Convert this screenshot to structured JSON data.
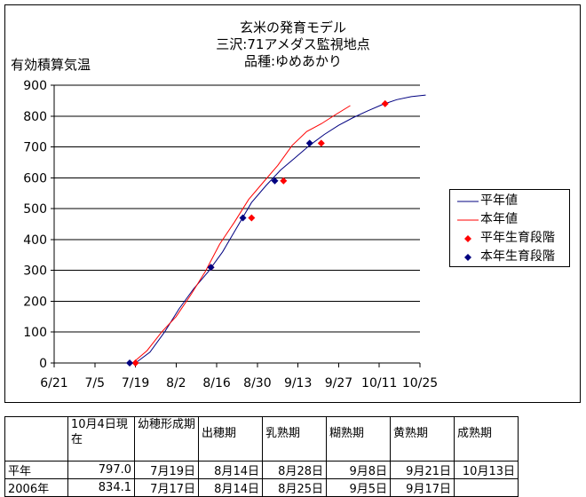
{
  "title_lines": [
    "玄米の発育モデル",
    "三沢:71アメダス監視地点",
    "品種:ゆめあかり"
  ],
  "ylabel": "有効積算気温",
  "colors": {
    "normal": "#000080",
    "current": "#ff0000"
  },
  "legend": [
    {
      "label": "平年値",
      "type": "line",
      "color": "#000080"
    },
    {
      "label": "本年値",
      "type": "line",
      "color": "#ff0000"
    },
    {
      "label": "平年生育段階",
      "type": "marker",
      "color": "#ff0000"
    },
    {
      "label": "本年生育段階",
      "type": "marker",
      "color": "#000080"
    }
  ],
  "chart_data": {
    "type": "line",
    "title": "玄米の発育モデル 三沢:71アメダス監視地点 品種:ゆめあかり",
    "ylabel": "有効積算気温",
    "xlabel": "",
    "ylim": [
      0,
      900
    ],
    "yticks": [
      0,
      100,
      200,
      300,
      400,
      500,
      600,
      700,
      800,
      900
    ],
    "xticks": [
      "6/21",
      "7/5",
      "7/19",
      "8/2",
      "8/16",
      "8/30",
      "9/13",
      "9/27",
      "10/11",
      "10/25"
    ],
    "xlim": [
      "6/21",
      "10/25"
    ],
    "grid": true,
    "legend_position": "right",
    "series": [
      {
        "name": "平年値",
        "color": "#000080",
        "x": [
          "7/19",
          "7/24",
          "7/29",
          "8/3",
          "8/8",
          "8/13",
          "8/18",
          "8/23",
          "8/28",
          "9/2",
          "9/7",
          "9/12",
          "9/17",
          "9/22",
          "9/27",
          "10/2",
          "10/7",
          "10/12",
          "10/17",
          "10/22",
          "10/27"
        ],
        "y": [
          0,
          35,
          100,
          175,
          240,
          295,
          360,
          440,
          520,
          575,
          625,
          665,
          705,
          740,
          770,
          795,
          817,
          837,
          853,
          863,
          868
        ]
      },
      {
        "name": "本年値",
        "color": "#ff0000",
        "x": [
          "7/18",
          "7/23",
          "7/28",
          "8/2",
          "8/7",
          "8/12",
          "8/17",
          "8/22",
          "8/27",
          "9/1",
          "9/6",
          "9/11",
          "9/16",
          "9/21",
          "9/26",
          "10/1"
        ],
        "y": [
          0,
          40,
          100,
          150,
          220,
          295,
          385,
          455,
          530,
          585,
          640,
          705,
          750,
          775,
          805,
          834
        ]
      },
      {
        "name": "平年生育段階",
        "color": "#ff0000",
        "marker": "diamond",
        "x": [
          "7/19",
          "8/14",
          "8/28",
          "9/8",
          "9/21",
          "10/13"
        ],
        "y": [
          0,
          310,
          470,
          590,
          712,
          840
        ]
      },
      {
        "name": "本年生育段階",
        "color": "#000080",
        "marker": "diamond",
        "x": [
          "7/17",
          "8/14",
          "8/25",
          "9/5",
          "9/17"
        ],
        "y": [
          0,
          310,
          470,
          590,
          712
        ]
      }
    ]
  },
  "table": {
    "header": [
      "",
      "10月4日現在",
      "幼穂形成期",
      "出穂期",
      "乳熟期",
      "糊熟期",
      "黄熟期",
      "成熟期"
    ],
    "rows": [
      [
        "平年",
        "797.0",
        "7月19日",
        "8月14日",
        "8月28日",
        "9月8日",
        "9月21日",
        "10月13日"
      ],
      [
        "2006年",
        "834.1",
        "7月17日",
        "8月14日",
        "8月25日",
        "9月5日",
        "9月17日",
        ""
      ]
    ]
  }
}
